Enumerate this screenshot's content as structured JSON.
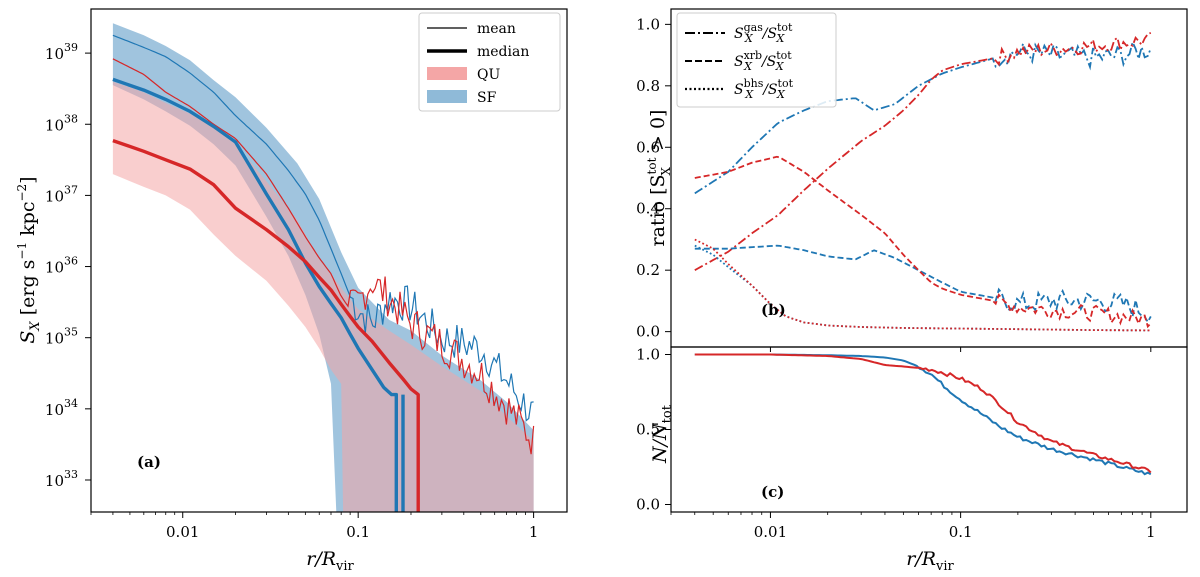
{
  "colors": {
    "qu": "#d62728",
    "sf": "#1f77b4",
    "qu_fill": "#f4a6a6",
    "sf_fill": "#8fbad8",
    "overlap": "#8b82a3"
  },
  "panel_a": {
    "ylabel_main": "S",
    "ylabel_sub": "X",
    "ylabel_units": " [erg s",
    "ylabel_sup1": "−1",
    "ylabel_kpc": " kpc",
    "ylabel_sup2": "−2",
    "ylabel_close": "]",
    "xlabel_main": "r/R",
    "xlabel_sub": "vir",
    "tag": "(a)",
    "legend": [
      {
        "label": "mean",
        "style": "thin"
      },
      {
        "label": "median",
        "style": "thick"
      },
      {
        "label": "QU",
        "style": "patch-qu"
      },
      {
        "label": "SF",
        "style": "patch-sf"
      }
    ],
    "xticks": [
      {
        "v": 0.01,
        "label": "0.01"
      },
      {
        "v": 0.1,
        "label": "0.1"
      },
      {
        "v": 1,
        "label": "1"
      }
    ],
    "yticks": [
      {
        "v": 33,
        "label": "33"
      },
      {
        "v": 34,
        "label": "34"
      },
      {
        "v": 35,
        "label": "35"
      },
      {
        "v": 36,
        "label": "36"
      },
      {
        "v": 37,
        "label": "37"
      },
      {
        "v": 38,
        "label": "38"
      },
      {
        "v": 39,
        "label": "39"
      }
    ],
    "ytick_base": "10"
  },
  "panel_b": {
    "ylabel_pre": "ratio [S",
    "ylabel_sup": "tot",
    "ylabel_sub": "X",
    "ylabel_post": " > 0]",
    "tag": "(b)",
    "legend": [
      {
        "num": "gas",
        "style": "dashdot"
      },
      {
        "num": "xrb",
        "style": "dashed"
      },
      {
        "num": "bhs",
        "style": "dotted"
      }
    ],
    "legend_S": "S",
    "legend_X": "X",
    "legend_slash": "/S",
    "legend_tot": "tot",
    "yticks": [
      {
        "v": 0.0,
        "label": "0.0"
      },
      {
        "v": 0.2,
        "label": "0.2"
      },
      {
        "v": 0.4,
        "label": "0.4"
      },
      {
        "v": 0.6,
        "label": "0.6"
      },
      {
        "v": 0.8,
        "label": "0.8"
      },
      {
        "v": 1.0,
        "label": "1.0"
      }
    ]
  },
  "panel_c": {
    "ylabel_main": "N/N",
    "ylabel_sub": "tot",
    "xlabel_main": "r/R",
    "xlabel_sub": "vir",
    "tag": "(c)",
    "xticks": [
      {
        "v": 0.01,
        "label": "0.01"
      },
      {
        "v": 0.1,
        "label": "0.1"
      },
      {
        "v": 1,
        "label": "1"
      }
    ],
    "yticks": [
      {
        "v": 0.0,
        "label": "0.0"
      },
      {
        "v": 0.5,
        "label": "0.5"
      },
      {
        "v": 1.0,
        "label": "1.0"
      }
    ]
  },
  "chart_data": [
    {
      "type": "line",
      "panel": "a",
      "title": "",
      "xlabel": "r/R_vir",
      "ylabel": "S_X [erg s^-1 kpc^-2]",
      "xscale": "log",
      "yscale": "log",
      "xlim": [
        0.003,
        1.55
      ],
      "ylim_log10": [
        32.55,
        39.62
      ],
      "note": "y values given as log10(S_X)",
      "series": [
        {
          "name": "SF mean",
          "x": [
            0.004,
            0.006,
            0.008,
            0.011,
            0.015,
            0.02,
            0.03,
            0.04,
            0.05,
            0.06,
            0.07,
            0.08,
            0.09,
            0.1,
            0.12,
            0.15,
            0.2,
            0.3,
            0.5,
            0.7,
            1.0
          ],
          "y": [
            39.25,
            39.08,
            38.95,
            38.72,
            38.45,
            38.12,
            37.72,
            37.35,
            37.02,
            36.65,
            36.25,
            35.9,
            35.58,
            35.4,
            35.2,
            35.55,
            35.45,
            35.0,
            34.85,
            34.4,
            33.9
          ]
        },
        {
          "name": "QU mean",
          "x": [
            0.004,
            0.006,
            0.008,
            0.011,
            0.015,
            0.02,
            0.03,
            0.04,
            0.05,
            0.06,
            0.07,
            0.08,
            0.09,
            0.1,
            0.12,
            0.15,
            0.2,
            0.3,
            0.5,
            0.7,
            1.0
          ],
          "y": [
            38.92,
            38.7,
            38.45,
            38.25,
            38.0,
            37.8,
            37.3,
            36.82,
            36.42,
            36.12,
            35.9,
            35.58,
            35.4,
            35.5,
            35.8,
            35.55,
            35.2,
            34.92,
            34.5,
            34.05,
            33.55
          ]
        },
        {
          "name": "SF median",
          "x": [
            0.004,
            0.006,
            0.008,
            0.011,
            0.015,
            0.02,
            0.025,
            0.03,
            0.04,
            0.05,
            0.06,
            0.07,
            0.08,
            0.09,
            0.1,
            0.12,
            0.14,
            0.155,
            0.165
          ],
          "y": [
            38.63,
            38.48,
            38.35,
            38.18,
            37.97,
            37.75,
            37.35,
            37.02,
            36.52,
            36.05,
            35.72,
            35.48,
            35.28,
            35.05,
            34.85,
            34.55,
            34.3,
            34.2,
            34.2
          ]
        },
        {
          "name": "QU median",
          "x": [
            0.004,
            0.006,
            0.008,
            0.011,
            0.015,
            0.02,
            0.03,
            0.04,
            0.05,
            0.06,
            0.07,
            0.08,
            0.09,
            0.1,
            0.12,
            0.15,
            0.18,
            0.2,
            0.22
          ],
          "y": [
            37.77,
            37.62,
            37.5,
            37.37,
            37.15,
            36.82,
            36.52,
            36.28,
            36.07,
            35.85,
            35.67,
            35.47,
            35.3,
            35.15,
            34.95,
            34.65,
            34.42,
            34.28,
            34.2
          ]
        }
      ]
    },
    {
      "type": "line",
      "panel": "b",
      "xlabel": "r/R_vir",
      "ylabel": "ratio [S_X^tot > 0]",
      "xscale": "log",
      "xlim": [
        0.003,
        1.55
      ],
      "ylim": [
        -0.05,
        1.05
      ],
      "series": [
        {
          "name": "gas SF",
          "style": "dashdot",
          "x": [
            0.004,
            0.006,
            0.008,
            0.011,
            0.015,
            0.02,
            0.028,
            0.035,
            0.045,
            0.06,
            0.08,
            0.1,
            0.15,
            0.2,
            0.3,
            0.5,
            0.7,
            1.0
          ],
          "y": [
            0.45,
            0.52,
            0.6,
            0.68,
            0.72,
            0.75,
            0.76,
            0.72,
            0.74,
            0.8,
            0.84,
            0.86,
            0.89,
            0.91,
            0.9,
            0.89,
            0.9,
            0.92
          ]
        },
        {
          "name": "gas QU",
          "style": "dashdot",
          "x": [
            0.004,
            0.006,
            0.008,
            0.011,
            0.015,
            0.02,
            0.03,
            0.04,
            0.05,
            0.06,
            0.07,
            0.08,
            0.1,
            0.15,
            0.2,
            0.3,
            0.5,
            0.7,
            1.0
          ],
          "y": [
            0.2,
            0.26,
            0.32,
            0.38,
            0.46,
            0.53,
            0.62,
            0.67,
            0.72,
            0.77,
            0.82,
            0.85,
            0.87,
            0.89,
            0.91,
            0.92,
            0.93,
            0.94,
            0.95
          ]
        },
        {
          "name": "xrb SF",
          "style": "dashed",
          "x": [
            0.004,
            0.006,
            0.008,
            0.011,
            0.015,
            0.02,
            0.028,
            0.035,
            0.045,
            0.06,
            0.08,
            0.1,
            0.15,
            0.2,
            0.3,
            0.5,
            0.7,
            1.0
          ],
          "y": [
            0.27,
            0.27,
            0.275,
            0.28,
            0.265,
            0.245,
            0.235,
            0.265,
            0.24,
            0.2,
            0.16,
            0.13,
            0.11,
            0.09,
            0.1,
            0.1,
            0.09,
            0.06
          ]
        },
        {
          "name": "xrb QU",
          "style": "dashed",
          "x": [
            0.004,
            0.006,
            0.008,
            0.011,
            0.015,
            0.02,
            0.03,
            0.04,
            0.05,
            0.06,
            0.07,
            0.08,
            0.1,
            0.15,
            0.2,
            0.3,
            0.5,
            0.7,
            1.0
          ],
          "y": [
            0.5,
            0.52,
            0.55,
            0.57,
            0.52,
            0.46,
            0.38,
            0.32,
            0.25,
            0.2,
            0.16,
            0.14,
            0.12,
            0.1,
            0.08,
            0.07,
            0.06,
            0.05,
            0.04
          ]
        },
        {
          "name": "bhs SF",
          "style": "dotted",
          "x": [
            0.004,
            0.005,
            0.006,
            0.008,
            0.01,
            0.012,
            0.015,
            0.02,
            0.03,
            0.05,
            0.1,
            0.2,
            0.5,
            1.0
          ],
          "y": [
            0.28,
            0.25,
            0.21,
            0.15,
            0.09,
            0.05,
            0.03,
            0.02,
            0.015,
            0.012,
            0.01,
            0.008,
            0.005,
            0.004
          ]
        },
        {
          "name": "bhs QU",
          "style": "dotted",
          "x": [
            0.004,
            0.005,
            0.006,
            0.008,
            0.01,
            0.012,
            0.015,
            0.02,
            0.03,
            0.05,
            0.1,
            0.2,
            0.5,
            1.0
          ],
          "y": [
            0.3,
            0.27,
            0.22,
            0.15,
            0.09,
            0.05,
            0.03,
            0.02,
            0.015,
            0.012,
            0.01,
            0.008,
            0.005,
            0.004
          ]
        }
      ]
    },
    {
      "type": "line",
      "panel": "c",
      "xlabel": "r/R_vir",
      "ylabel": "N/N_tot",
      "xscale": "log",
      "xlim": [
        0.003,
        1.55
      ],
      "ylim": [
        -0.05,
        1.05
      ],
      "series": [
        {
          "name": "SF",
          "x": [
            0.004,
            0.01,
            0.02,
            0.03,
            0.04,
            0.05,
            0.06,
            0.07,
            0.08,
            0.1,
            0.13,
            0.16,
            0.2,
            0.3,
            0.5,
            0.7,
            1.0
          ],
          "y": [
            1.0,
            1.0,
            0.995,
            0.99,
            0.98,
            0.96,
            0.92,
            0.87,
            0.8,
            0.7,
            0.6,
            0.52,
            0.45,
            0.37,
            0.3,
            0.25,
            0.2
          ]
        },
        {
          "name": "QU",
          "x": [
            0.004,
            0.01,
            0.02,
            0.03,
            0.04,
            0.05,
            0.06,
            0.07,
            0.08,
            0.1,
            0.13,
            0.16,
            0.2,
            0.3,
            0.5,
            0.7,
            1.0
          ],
          "y": [
            1.0,
            1.0,
            0.99,
            0.97,
            0.93,
            0.92,
            0.91,
            0.9,
            0.88,
            0.84,
            0.77,
            0.67,
            0.55,
            0.42,
            0.33,
            0.28,
            0.22
          ]
        }
      ]
    }
  ]
}
